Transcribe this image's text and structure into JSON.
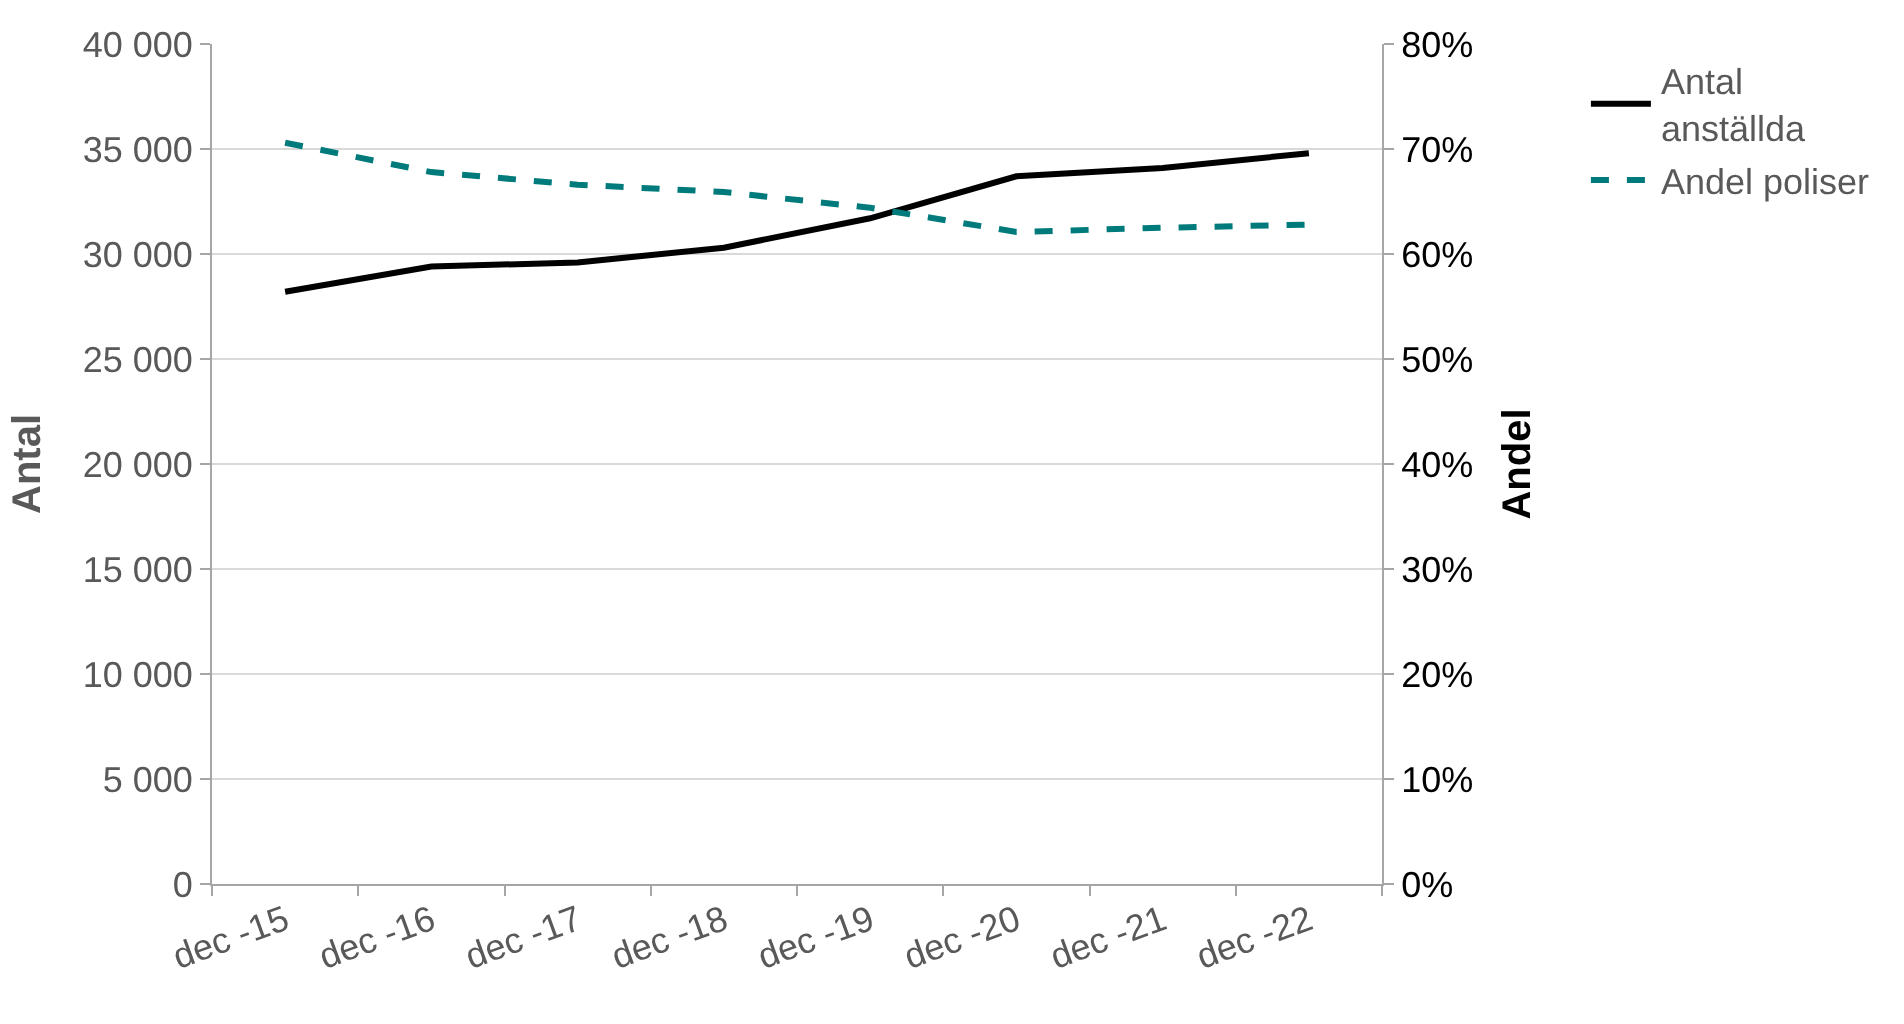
{
  "chart_data": {
    "type": "line",
    "categories": [
      "dec -15",
      "dec -16",
      "dec -17",
      "dec -18",
      "dec -19",
      "dec -20",
      "dec -21",
      "dec -22"
    ],
    "ylabel": "Antal",
    "y2label": "Andel",
    "ylim": [
      0,
      40000
    ],
    "yticks": [
      {
        "value": 0,
        "label": "0"
      },
      {
        "value": 5000,
        "label": "5 000"
      },
      {
        "value": 10000,
        "label": "10 000"
      },
      {
        "value": 15000,
        "label": "15 000"
      },
      {
        "value": 20000,
        "label": "20 000"
      },
      {
        "value": 25000,
        "label": "25 000"
      },
      {
        "value": 30000,
        "label": "30 000"
      },
      {
        "value": 35000,
        "label": "35 000"
      },
      {
        "value": 40000,
        "label": "40 000"
      }
    ],
    "y2lim": [
      0,
      80
    ],
    "y2ticks": [
      {
        "value": 0,
        "label": "0%"
      },
      {
        "value": 10,
        "label": "10%"
      },
      {
        "value": 20,
        "label": "20%"
      },
      {
        "value": 30,
        "label": "30%"
      },
      {
        "value": 40,
        "label": "40%"
      },
      {
        "value": 50,
        "label": "50%"
      },
      {
        "value": 60,
        "label": "60%"
      },
      {
        "value": 70,
        "label": "70%"
      },
      {
        "value": 80,
        "label": "80%"
      }
    ],
    "grid": "y",
    "legend": "right",
    "marker": "none",
    "series": [
      {
        "name": "Antal anställda",
        "color": "#000000",
        "line_style": "solid",
        "values": [
          28200,
          29400,
          29600,
          30300,
          31700,
          33700,
          34100,
          34800
        ]
      },
      {
        "name": "Andel poliser",
        "color": "#007a7a",
        "line_style": "dashed",
        "axis": "y2",
        "values": [
          70.6,
          67.8,
          66.6,
          65.9,
          64.4,
          62.1,
          62.5,
          62.8
        ]
      }
    ]
  }
}
